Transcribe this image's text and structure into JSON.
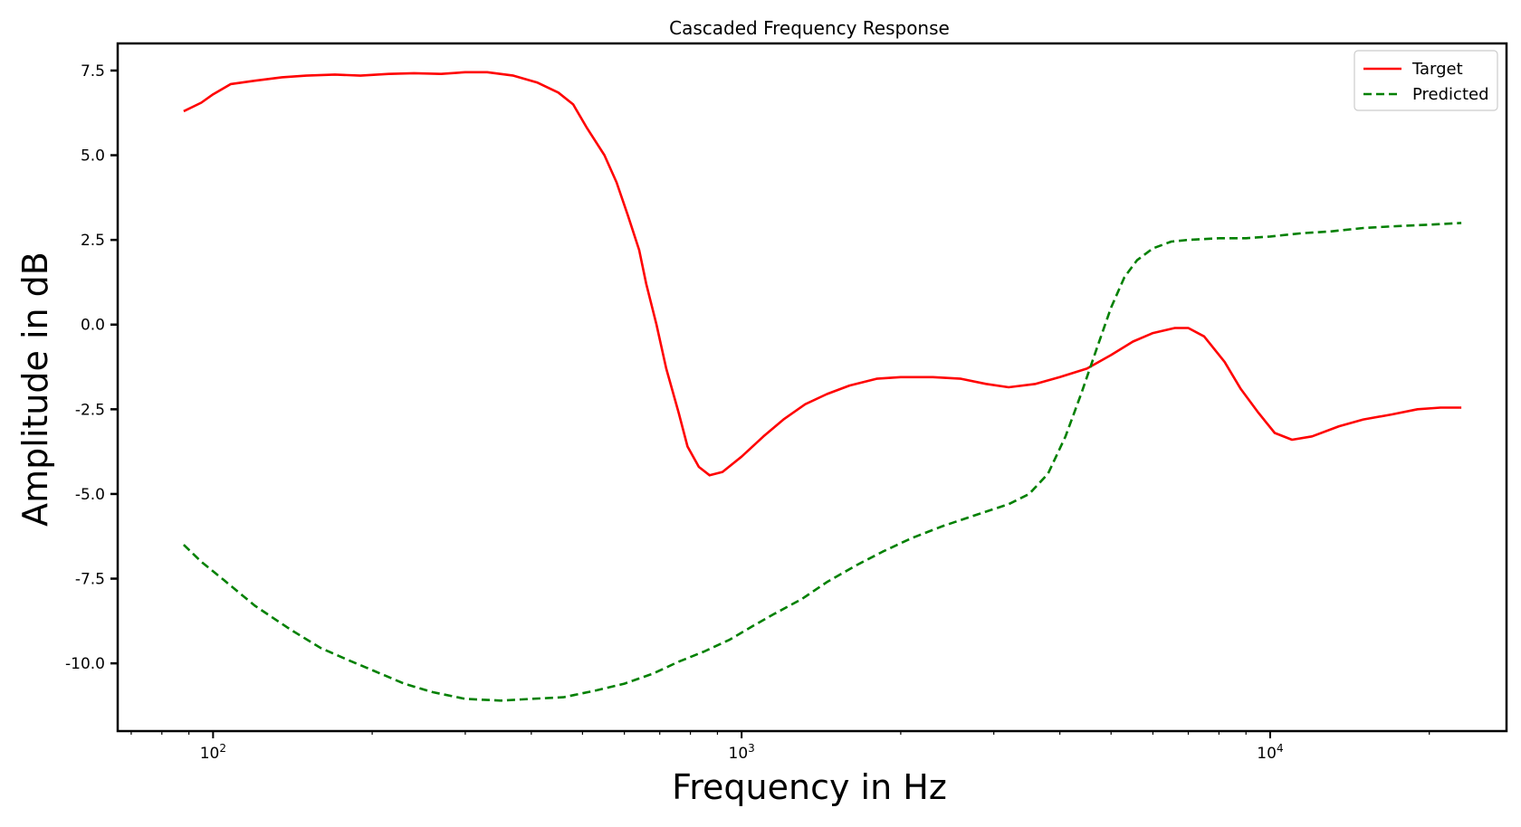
{
  "chart_data": {
    "type": "line",
    "title": "Cascaded Frequency Response",
    "xlabel": "Frequency in Hz",
    "ylabel": "Amplitude in dB",
    "xscale": "log",
    "xlim": [
      66,
      28000
    ],
    "ylim": [
      -12.0,
      8.3
    ],
    "grid": false,
    "legend_position": "top-right",
    "x_ticks": [
      {
        "value": 100,
        "base": "10",
        "exp": "2"
      },
      {
        "value": 1000,
        "base": "10",
        "exp": "3"
      },
      {
        "value": 10000,
        "base": "10",
        "exp": "4"
      }
    ],
    "y_ticks": [
      {
        "value": 7.5,
        "label": "7.5"
      },
      {
        "value": 5.0,
        "label": "5.0"
      },
      {
        "value": 2.5,
        "label": "2.5"
      },
      {
        "value": 0.0,
        "label": "0.0"
      },
      {
        "value": -2.5,
        "label": "-2.5"
      },
      {
        "value": -5.0,
        "label": "-5.0"
      },
      {
        "value": -7.5,
        "label": "-7.5"
      },
      {
        "value": -10.0,
        "label": "-10.0"
      }
    ],
    "series": [
      {
        "name": "Target",
        "color": "#ff0000",
        "style": "solid",
        "points": [
          [
            88,
            6.3
          ],
          [
            95,
            6.55
          ],
          [
            100,
            6.8
          ],
          [
            108,
            7.1
          ],
          [
            120,
            7.2
          ],
          [
            135,
            7.3
          ],
          [
            150,
            7.35
          ],
          [
            170,
            7.38
          ],
          [
            190,
            7.35
          ],
          [
            215,
            7.4
          ],
          [
            240,
            7.42
          ],
          [
            270,
            7.4
          ],
          [
            300,
            7.45
          ],
          [
            330,
            7.45
          ],
          [
            370,
            7.35
          ],
          [
            410,
            7.15
          ],
          [
            450,
            6.85
          ],
          [
            480,
            6.5
          ],
          [
            510,
            5.8
          ],
          [
            550,
            5.0
          ],
          [
            580,
            4.2
          ],
          [
            610,
            3.2
          ],
          [
            640,
            2.2
          ],
          [
            660,
            1.2
          ],
          [
            690,
            0.0
          ],
          [
            720,
            -1.3
          ],
          [
            760,
            -2.6
          ],
          [
            790,
            -3.6
          ],
          [
            830,
            -4.2
          ],
          [
            870,
            -4.45
          ],
          [
            920,
            -4.35
          ],
          [
            1000,
            -3.9
          ],
          [
            1100,
            -3.3
          ],
          [
            1200,
            -2.8
          ],
          [
            1320,
            -2.35
          ],
          [
            1450,
            -2.05
          ],
          [
            1600,
            -1.8
          ],
          [
            1800,
            -1.6
          ],
          [
            2000,
            -1.55
          ],
          [
            2300,
            -1.55
          ],
          [
            2600,
            -1.6
          ],
          [
            2900,
            -1.75
          ],
          [
            3200,
            -1.85
          ],
          [
            3600,
            -1.75
          ],
          [
            4000,
            -1.55
          ],
          [
            4500,
            -1.3
          ],
          [
            5000,
            -0.9
          ],
          [
            5500,
            -0.5
          ],
          [
            6000,
            -0.25
          ],
          [
            6600,
            -0.1
          ],
          [
            7000,
            -0.1
          ],
          [
            7500,
            -0.35
          ],
          [
            8200,
            -1.1
          ],
          [
            8800,
            -1.9
          ],
          [
            9500,
            -2.6
          ],
          [
            10200,
            -3.2
          ],
          [
            11000,
            -3.4
          ],
          [
            12000,
            -3.3
          ],
          [
            13500,
            -3.0
          ],
          [
            15000,
            -2.8
          ],
          [
            17000,
            -2.65
          ],
          [
            19000,
            -2.5
          ],
          [
            21000,
            -2.45
          ],
          [
            23000,
            -2.45
          ]
        ]
      },
      {
        "name": "Predicted",
        "color": "#008000",
        "style": "dashed",
        "points": [
          [
            88,
            -6.5
          ],
          [
            95,
            -7.0
          ],
          [
            105,
            -7.55
          ],
          [
            120,
            -8.3
          ],
          [
            140,
            -9.0
          ],
          [
            160,
            -9.55
          ],
          [
            180,
            -9.9
          ],
          [
            200,
            -10.2
          ],
          [
            230,
            -10.6
          ],
          [
            260,
            -10.85
          ],
          [
            300,
            -11.05
          ],
          [
            350,
            -11.1
          ],
          [
            400,
            -11.05
          ],
          [
            460,
            -11.0
          ],
          [
            530,
            -10.8
          ],
          [
            600,
            -10.6
          ],
          [
            680,
            -10.3
          ],
          [
            760,
            -9.95
          ],
          [
            850,
            -9.65
          ],
          [
            950,
            -9.3
          ],
          [
            1050,
            -8.9
          ],
          [
            1150,
            -8.55
          ],
          [
            1300,
            -8.1
          ],
          [
            1450,
            -7.6
          ],
          [
            1650,
            -7.1
          ],
          [
            1850,
            -6.7
          ],
          [
            2100,
            -6.3
          ],
          [
            2400,
            -5.95
          ],
          [
            2800,
            -5.6
          ],
          [
            3200,
            -5.3
          ],
          [
            3500,
            -5.0
          ],
          [
            3800,
            -4.4
          ],
          [
            4100,
            -3.3
          ],
          [
            4400,
            -2.0
          ],
          [
            4700,
            -0.7
          ],
          [
            5000,
            0.5
          ],
          [
            5300,
            1.4
          ],
          [
            5600,
            1.9
          ],
          [
            6000,
            2.25
          ],
          [
            6500,
            2.45
          ],
          [
            7000,
            2.5
          ],
          [
            8000,
            2.55
          ],
          [
            9000,
            2.55
          ],
          [
            10000,
            2.6
          ],
          [
            11500,
            2.7
          ],
          [
            13000,
            2.75
          ],
          [
            15000,
            2.85
          ],
          [
            17000,
            2.9
          ],
          [
            20000,
            2.95
          ],
          [
            23000,
            3.0
          ]
        ]
      }
    ]
  }
}
